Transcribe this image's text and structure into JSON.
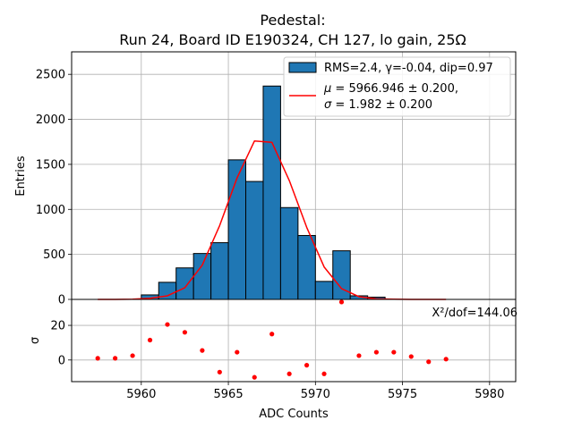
{
  "chart_data": {
    "type": "bar",
    "title": "Pedestal:",
    "subtitle": "Run 24, Board ID E190324, CH 127, lo gain, 25Ω",
    "xlabel": "ADC Counts",
    "xlim": [
      5956,
      5981.5
    ],
    "xticks": [
      5960,
      5965,
      5970,
      5975,
      5980
    ],
    "grid": true,
    "histogram": {
      "ylabel": "Entries",
      "ylim": [
        0,
        2750
      ],
      "yticks": [
        0,
        500,
        1000,
        1500,
        2000,
        2500
      ],
      "bin_edges": [
        5960,
        5961,
        5962,
        5963,
        5964,
        5965,
        5966,
        5967,
        5968,
        5969,
        5970,
        5971,
        5972,
        5973,
        5974
      ],
      "counts": [
        50,
        190,
        350,
        510,
        630,
        1550,
        1310,
        2370,
        1020,
        710,
        200,
        540,
        40,
        25
      ],
      "bar_color": "#1f77b4",
      "edge_color": "#000000",
      "legend_label": "RMS=2.4, γ=-0.04, dip=0.97"
    },
    "fit": {
      "color": "#ff0000",
      "x": [
        5957.5,
        5958.5,
        5959.5,
        5960.5,
        5961.5,
        5962.5,
        5963.5,
        5964.5,
        5965.5,
        5966.5,
        5967.5,
        5968.5,
        5969.5,
        5970.5,
        5971.5,
        5972.5,
        5973.5,
        5974.5,
        5975.5,
        5976.5,
        5977.5
      ],
      "y": [
        0,
        0,
        2,
        12,
        40,
        130,
        380,
        820,
        1350,
        1760,
        1745,
        1320,
        800,
        360,
        120,
        30,
        6,
        2,
        0,
        0,
        0
      ],
      "legend_line1_prefix": "μ = ",
      "legend_line1_value": "5966.946 ± 0.200,",
      "legend_line2_prefix": "σ = ",
      "legend_line2_value": "1.982 ± 0.200"
    },
    "residuals": {
      "ylabel": "σ",
      "ylim": [
        -12.5,
        35
      ],
      "yticks": [
        0,
        20
      ],
      "x": [
        5957.5,
        5958.5,
        5959.5,
        5960.5,
        5961.5,
        5962.5,
        5963.5,
        5964.5,
        5965.5,
        5966.5,
        5967.5,
        5968.5,
        5969.5,
        5970.5,
        5971.5,
        5972.5,
        5973.5,
        5974.5,
        5975.5,
        5976.5,
        5977.5
      ],
      "values": [
        1,
        1,
        2.5,
        11.5,
        20.5,
        16,
        5.5,
        -7,
        4.5,
        -10,
        15,
        -8,
        -3,
        -8,
        33.5,
        2.5,
        4.5,
        4.5,
        2,
        -1,
        0.5
      ],
      "color": "#ff0000",
      "chi2_label": "X²/dof=144.06"
    }
  }
}
